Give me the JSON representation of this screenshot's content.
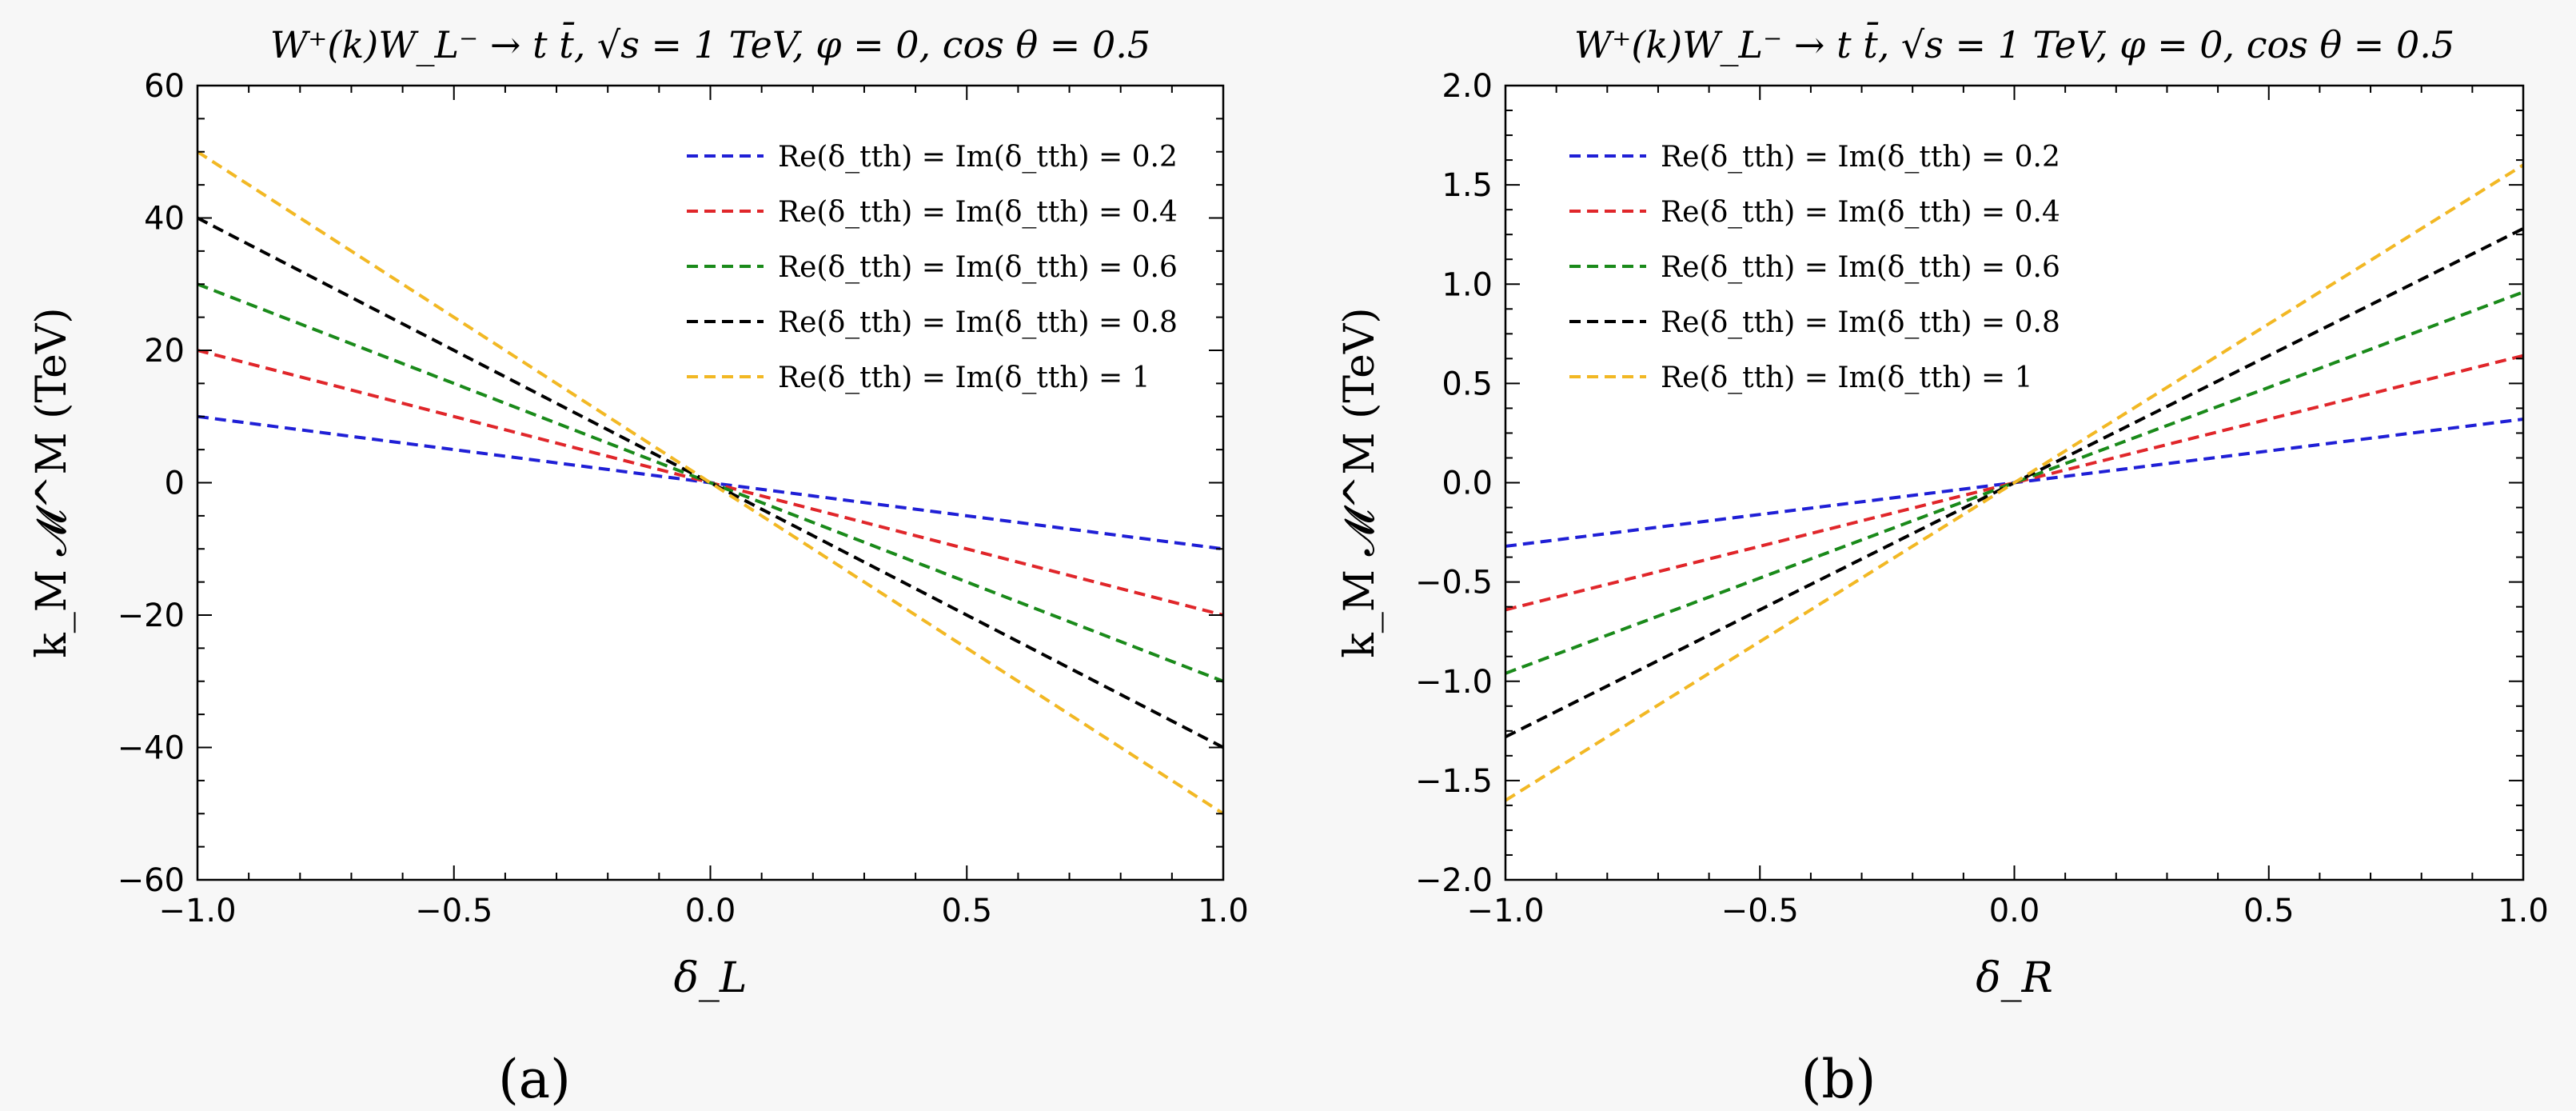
{
  "chart_data": [
    {
      "type": "line",
      "panel_label": "(a)",
      "title": "W⁺(k)W_L⁻ → t t̄,  √s = 1 TeV,  φ = 0, cos θ = 0.5",
      "xlabel": "δ_L",
      "ylabel": "k_M 𝓜^M (TeV)",
      "xlim": [
        -1.0,
        1.0
      ],
      "ylim": [
        -60,
        60
      ],
      "xticks": [
        -1.0,
        -0.5,
        0.0,
        0.5,
        1.0
      ],
      "xtick_labels": [
        "−1.0",
        "−0.5",
        "0.0",
        "0.5",
        "1.0"
      ],
      "yticks": [
        -60,
        -40,
        -20,
        0,
        20,
        40,
        60
      ],
      "ytick_labels": [
        "−60",
        "−40",
        "−20",
        "0",
        "20",
        "40",
        "60"
      ],
      "legend_position": "top-right",
      "grid": false,
      "series": [
        {
          "name": "Re(δ_tth) = Im(δ_tth) = 0.2",
          "color": "#1f1fd6",
          "x": [
            -1.0,
            1.0
          ],
          "y": [
            10,
            -10
          ]
        },
        {
          "name": "Re(δ_tth) = Im(δ_tth) = 0.4",
          "color": "#e0262a",
          "x": [
            -1.0,
            1.0
          ],
          "y": [
            20,
            -20
          ]
        },
        {
          "name": "Re(δ_tth) = Im(δ_tth) = 0.6",
          "color": "#1a8a1a",
          "x": [
            -1.0,
            1.0
          ],
          "y": [
            30,
            -30
          ]
        },
        {
          "name": "Re(δ_tth) = Im(δ_tth) = 0.8",
          "color": "#000000",
          "x": [
            -1.0,
            1.0
          ],
          "y": [
            40,
            -40
          ]
        },
        {
          "name": "Re(δ_tth) = Im(δ_tth) = 1",
          "color": "#f2b824",
          "x": [
            -1.0,
            1.0
          ],
          "y": [
            50,
            -50
          ]
        }
      ]
    },
    {
      "type": "line",
      "panel_label": "(b)",
      "title": "W⁺(k)W_L⁻ → t t̄,  √s = 1 TeV,  φ = 0, cos θ = 0.5",
      "xlabel": "δ_R",
      "ylabel": "k_M 𝓜^M (TeV)",
      "xlim": [
        -1.0,
        1.0
      ],
      "ylim": [
        -2.0,
        2.0
      ],
      "xticks": [
        -1.0,
        -0.5,
        0.0,
        0.5,
        1.0
      ],
      "xtick_labels": [
        "−1.0",
        "−0.5",
        "0.0",
        "0.5",
        "1.0"
      ],
      "yticks": [
        -2.0,
        -1.5,
        -1.0,
        -0.5,
        0.0,
        0.5,
        1.0,
        1.5,
        2.0
      ],
      "ytick_labels": [
        "−2.0",
        "−1.5",
        "−1.0",
        "−0.5",
        "0.0",
        "0.5",
        "1.0",
        "1.5",
        "2.0"
      ],
      "legend_position": "top-left",
      "grid": false,
      "series": [
        {
          "name": "Re(δ_tth) = Im(δ_tth) = 0.2",
          "color": "#1f1fd6",
          "x": [
            -1.0,
            1.0
          ],
          "y": [
            -0.32,
            0.32
          ]
        },
        {
          "name": "Re(δ_tth) = Im(δ_tth) = 0.4",
          "color": "#e0262a",
          "x": [
            -1.0,
            1.0
          ],
          "y": [
            -0.64,
            0.64
          ]
        },
        {
          "name": "Re(δ_tth) = Im(δ_tth) = 0.6",
          "color": "#1a8a1a",
          "x": [
            -1.0,
            1.0
          ],
          "y": [
            -0.96,
            0.96
          ]
        },
        {
          "name": "Re(δ_tth) = Im(δ_tth) = 0.8",
          "color": "#000000",
          "x": [
            -1.0,
            1.0
          ],
          "y": [
            -1.28,
            1.28
          ]
        },
        {
          "name": "Re(δ_tth) = Im(δ_tth) = 1",
          "color": "#f2b824",
          "x": [
            -1.0,
            1.0
          ],
          "y": [
            -1.6,
            1.6
          ]
        }
      ]
    }
  ]
}
